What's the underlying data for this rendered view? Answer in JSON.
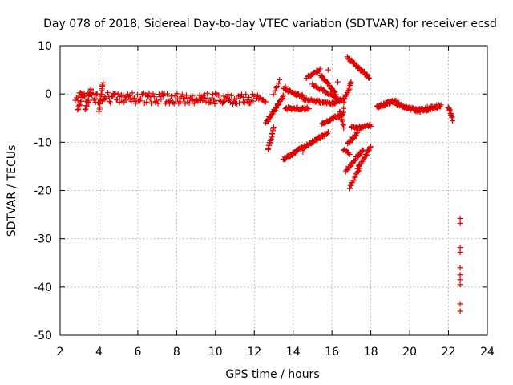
{
  "chart_data": {
    "type": "scatter",
    "title": "Day 078 of 2018, Sidereal Day-to-day VTEC variation (SDTVAR) for receiver ecsd",
    "xlabel": "GPS time / hours",
    "ylabel": "SDTVAR / TECUs",
    "xlim": [
      2,
      24
    ],
    "ylim": [
      -50,
      10
    ],
    "xticks": [
      2,
      4,
      6,
      8,
      10,
      12,
      14,
      16,
      18,
      20,
      22,
      24
    ],
    "yticks": [
      10,
      0,
      -10,
      -20,
      -30,
      -40,
      -50
    ],
    "xtick_labels": [
      "2",
      "4",
      "6",
      "8",
      "10",
      "12",
      "14",
      "16",
      "18",
      "20",
      "22",
      "24"
    ],
    "ytick_labels": [
      "10",
      "0",
      "-10",
      "-20",
      "-30",
      "-40",
      "-50"
    ],
    "grid": true,
    "marker": "+",
    "color": "#e00000",
    "segments": [
      {
        "x0": 2.8,
        "x1": 12.0,
        "y0": -0.8,
        "y1": -1.0,
        "n": 190,
        "jitter": 1.1
      },
      {
        "x0": 2.9,
        "x1": 3.1,
        "y0": -3.5,
        "y1": -1.0,
        "n": 8,
        "jitter": 0.3
      },
      {
        "x0": 3.3,
        "x1": 3.6,
        "y0": -3.5,
        "y1": 1.0,
        "n": 12,
        "jitter": 0.3
      },
      {
        "x0": 4.0,
        "x1": 4.2,
        "y0": -4.0,
        "y1": 2.5,
        "n": 14,
        "jitter": 0.4
      },
      {
        "x0": 12.1,
        "x1": 12.6,
        "y0": -0.5,
        "y1": -1.5,
        "n": 12,
        "jitter": 0.4
      },
      {
        "x0": 12.6,
        "x1": 13.5,
        "y0": -6.0,
        "y1": -0.5,
        "n": 34,
        "jitter": 0.3
      },
      {
        "x0": 12.7,
        "x1": 13.0,
        "y0": -11.5,
        "y1": -7.0,
        "n": 14,
        "jitter": 0.3
      },
      {
        "x0": 13.0,
        "x1": 13.3,
        "y0": 0.0,
        "y1": 3.0,
        "n": 6,
        "jitter": 0.3
      },
      {
        "x0": 13.5,
        "x1": 15.8,
        "y0": -13.5,
        "y1": -8.0,
        "n": 70,
        "jitter": 0.25
      },
      {
        "x0": 13.5,
        "x1": 14.5,
        "y0": 1.0,
        "y1": -0.5,
        "n": 30,
        "jitter": 0.25
      },
      {
        "x0": 13.6,
        "x1": 14.8,
        "y0": -3.0,
        "y1": -3.0,
        "n": 36,
        "jitter": 0.25
      },
      {
        "x0": 14.5,
        "x1": 16.0,
        "y0": -1.0,
        "y1": -2.0,
        "n": 34,
        "jitter": 0.25
      },
      {
        "x0": 14.7,
        "x1": 15.4,
        "y0": 3.5,
        "y1": 5.0,
        "n": 18,
        "jitter": 0.25
      },
      {
        "x0": 15.0,
        "x1": 16.5,
        "y0": 2.0,
        "y1": -1.5,
        "n": 30,
        "jitter": 0.25
      },
      {
        "x0": 15.4,
        "x1": 16.2,
        "y0": 4.0,
        "y1": 0.0,
        "n": 24,
        "jitter": 0.25
      },
      {
        "x0": 15.5,
        "x1": 16.6,
        "y0": -6.0,
        "y1": -4.0,
        "n": 30,
        "jitter": 0.25
      },
      {
        "x0": 16.0,
        "x1": 16.6,
        "y0": -2.0,
        "y1": -1.0,
        "n": 18,
        "jitter": 0.25
      },
      {
        "x0": 16.4,
        "x1": 16.6,
        "y0": -3.5,
        "y1": -7.0,
        "n": 10,
        "jitter": 0.25
      },
      {
        "x0": 16.6,
        "x1": 17.0,
        "y0": -1.5,
        "y1": 2.5,
        "n": 14,
        "jitter": 0.25
      },
      {
        "x0": 16.6,
        "x1": 16.9,
        "y0": -11.5,
        "y1": -12.5,
        "n": 8,
        "jitter": 0.25
      },
      {
        "x0": 16.8,
        "x1": 17.9,
        "y0": 7.5,
        "y1": 3.5,
        "n": 36,
        "jitter": 0.25
      },
      {
        "x0": 16.8,
        "x1": 17.3,
        "y0": -10.5,
        "y1": -8.0,
        "n": 14,
        "jitter": 0.25
      },
      {
        "x0": 17.0,
        "x1": 18.0,
        "y0": -7.0,
        "y1": -6.5,
        "n": 24,
        "jitter": 0.25
      },
      {
        "x0": 16.7,
        "x1": 17.6,
        "y0": -16.0,
        "y1": -11.5,
        "n": 24,
        "jitter": 0.25
      },
      {
        "x0": 16.9,
        "x1": 17.4,
        "y0": -19.5,
        "y1": -15.5,
        "n": 14,
        "jitter": 0.25
      },
      {
        "x0": 17.3,
        "x1": 18.0,
        "y0": -15.5,
        "y1": -11.0,
        "n": 20,
        "jitter": 0.25
      },
      {
        "x0": 18.3,
        "x1": 19.3,
        "y0": -2.5,
        "y1": -1.5,
        "n": 40,
        "jitter": 0.35
      },
      {
        "x0": 19.3,
        "x1": 20.4,
        "y0": -2.0,
        "y1": -3.5,
        "n": 40,
        "jitter": 0.35
      },
      {
        "x0": 20.4,
        "x1": 21.6,
        "y0": -3.5,
        "y1": -2.5,
        "n": 40,
        "jitter": 0.4
      },
      {
        "x0": 22.0,
        "x1": 22.2,
        "y0": -2.5,
        "y1": -5.5,
        "n": 12,
        "jitter": 0.35
      }
    ],
    "points": [
      [
        14.5,
        -12.0
      ],
      [
        15.5,
        -8.5
      ],
      [
        16.6,
        -3.0
      ],
      [
        16.9,
        1.0
      ],
      [
        18.4,
        -2.8
      ],
      [
        22.6,
        -25.8
      ],
      [
        22.6,
        -26.8
      ],
      [
        22.6,
        -31.8
      ],
      [
        22.6,
        -32.8
      ],
      [
        22.6,
        -36.0
      ],
      [
        22.6,
        -37.5
      ],
      [
        22.6,
        -38.5
      ],
      [
        22.6,
        -39.5
      ],
      [
        22.6,
        -43.5
      ],
      [
        22.6,
        -45.0
      ],
      [
        13.6,
        1.5
      ],
      [
        14.2,
        -0.5
      ],
      [
        15.8,
        5.0
      ],
      [
        16.3,
        2.5
      ],
      [
        17.4,
        -7.5
      ]
    ]
  }
}
